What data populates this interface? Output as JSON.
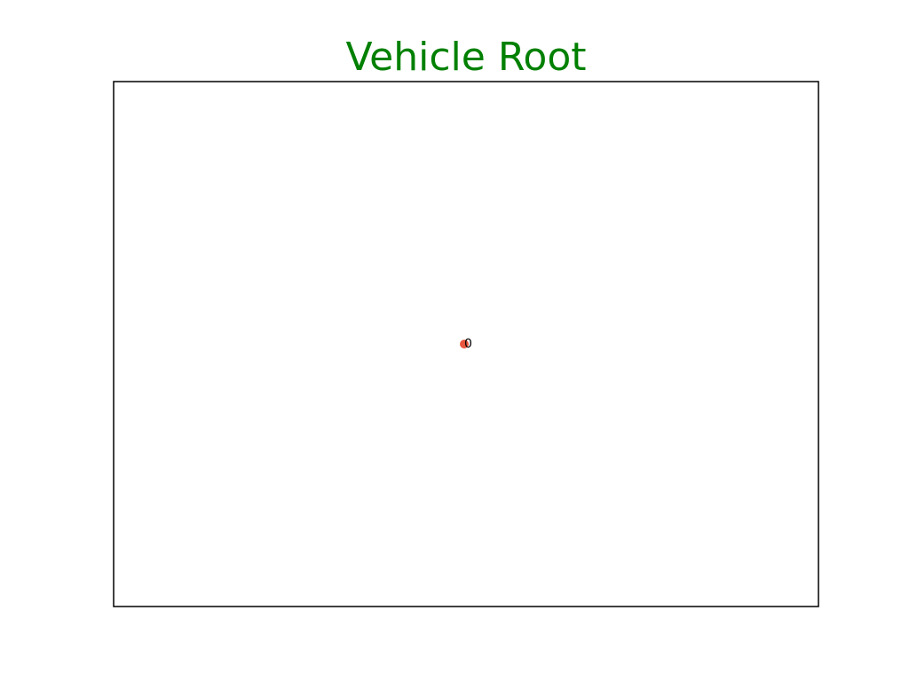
{
  "chart_data": {
    "type": "scatter",
    "title": "Vehicle Root",
    "xlabel": "",
    "ylabel": "",
    "xlim": [
      -1,
      1
    ],
    "ylim": [
      -1,
      1
    ],
    "grid": false,
    "axes_ticks": false,
    "points": [
      {
        "x": 0,
        "y": 0,
        "label": "0"
      }
    ]
  },
  "colors": {
    "title": "#008000",
    "point": "#e8573f",
    "label": "#000000",
    "frame": "#000000",
    "background": "#ffffff"
  }
}
